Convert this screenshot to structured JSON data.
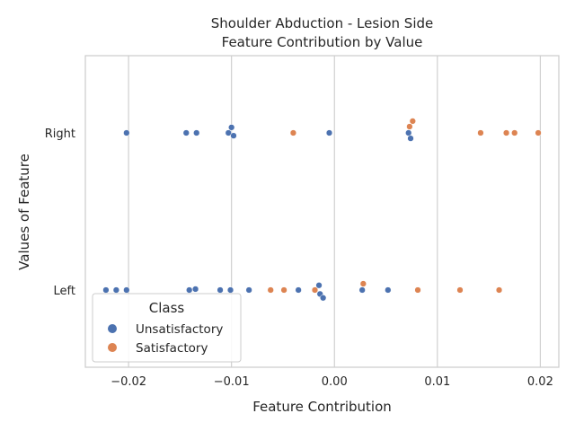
{
  "chart_data": {
    "type": "scatter",
    "title": "Shoulder Abduction - Lesion Side",
    "subtitle": "Feature Contribution by Value",
    "xlabel": "Feature Contribution",
    "ylabel": "Values of Feature",
    "xlim": [
      -0.0242,
      0.0218
    ],
    "x_ticks": [
      -0.02,
      -0.01,
      0.0,
      0.01,
      0.02
    ],
    "x_tick_labels": [
      "−0.02",
      "−0.01",
      "0.00",
      "0.01",
      "0.02"
    ],
    "categories": [
      "Right",
      "Left"
    ],
    "grid": true,
    "legend_position": "bottom-left",
    "legend_title": "Class",
    "series": [
      {
        "name": "Unsatisfactory",
        "color": "#4c72b0",
        "points": [
          {
            "x": -0.0202,
            "y": "Right"
          },
          {
            "x": -0.0144,
            "y": "Right"
          },
          {
            "x": -0.0134,
            "y": "Right"
          },
          {
            "x": -0.01,
            "y": "Right",
            "jitter": -0.035
          },
          {
            "x": -0.0103,
            "y": "Right",
            "jitter": 0.0
          },
          {
            "x": -0.0098,
            "y": "Right",
            "jitter": 0.018
          },
          {
            "x": -0.0005,
            "y": "Right"
          },
          {
            "x": 0.0072,
            "y": "Right",
            "jitter": 0.0
          },
          {
            "x": 0.0074,
            "y": "Right",
            "jitter": 0.035
          },
          {
            "x": -0.0222,
            "y": "Left"
          },
          {
            "x": -0.0212,
            "y": "Left"
          },
          {
            "x": -0.0202,
            "y": "Left"
          },
          {
            "x": -0.0141,
            "y": "Left"
          },
          {
            "x": -0.0135,
            "y": "Left",
            "jitter": -0.006
          },
          {
            "x": -0.0111,
            "y": "Left"
          },
          {
            "x": -0.0101,
            "y": "Left"
          },
          {
            "x": -0.0083,
            "y": "Left"
          },
          {
            "x": -0.0035,
            "y": "Left"
          },
          {
            "x": -0.0015,
            "y": "Left",
            "jitter": -0.03
          },
          {
            "x": -0.0014,
            "y": "Left",
            "jitter": 0.025
          },
          {
            "x": -0.0011,
            "y": "Left",
            "jitter": 0.05
          },
          {
            "x": 0.0027,
            "y": "Left"
          },
          {
            "x": 0.0052,
            "y": "Left"
          }
        ]
      },
      {
        "name": "Satisfactory",
        "color": "#dd8452",
        "points": [
          {
            "x": -0.004,
            "y": "Right"
          },
          {
            "x": 0.0073,
            "y": "Right",
            "jitter": -0.04
          },
          {
            "x": 0.0076,
            "y": "Right",
            "jitter": -0.075
          },
          {
            "x": 0.0142,
            "y": "Right"
          },
          {
            "x": 0.0167,
            "y": "Right"
          },
          {
            "x": 0.0175,
            "y": "Right"
          },
          {
            "x": 0.0198,
            "y": "Right"
          },
          {
            "x": -0.0062,
            "y": "Left"
          },
          {
            "x": -0.0049,
            "y": "Left"
          },
          {
            "x": -0.0019,
            "y": "Left"
          },
          {
            "x": 0.0028,
            "y": "Left",
            "jitter": -0.04
          },
          {
            "x": 0.0081,
            "y": "Left"
          },
          {
            "x": 0.0122,
            "y": "Left"
          },
          {
            "x": 0.016,
            "y": "Left"
          }
        ]
      }
    ]
  }
}
